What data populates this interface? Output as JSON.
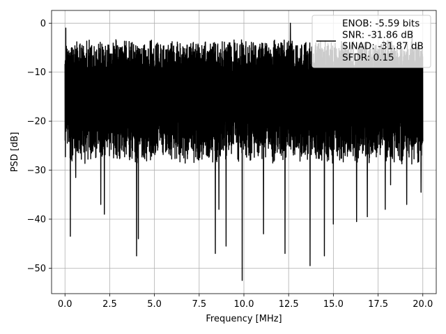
{
  "chart_data": {
    "type": "line",
    "title": "",
    "xlabel": "Frequency [MHz]",
    "ylabel": "PSD [dB]",
    "xlim": [
      -0.75,
      20.75
    ],
    "ylim": [
      -55.2,
      2.6
    ],
    "xticks": [
      0.0,
      2.5,
      5.0,
      7.5,
      10.0,
      12.5,
      15.0,
      17.5,
      20.0
    ],
    "xtick_labels": [
      "0.0",
      "2.5",
      "5.0",
      "7.5",
      "10.0",
      "12.5",
      "15.0",
      "17.5",
      "20.0"
    ],
    "yticks": [
      0,
      -10,
      -20,
      -30,
      -40,
      -50
    ],
    "ytick_labels": [
      "0",
      "−10",
      "−20",
      "−30",
      "−40",
      "−50"
    ],
    "grid": true,
    "legend_position": "top-right",
    "series": [
      {
        "name": "ENOB: -5.59 bits\nSNR: -31.86 dB\nSINAD: -31.87 dB\nSFDR: 0.15",
        "legend_lines": [
          "ENOB: -5.59 bits",
          "SNR: -31.86 dB",
          "SINAD: -31.87 dB",
          "SFDR: 0.15"
        ],
        "color": "#000000",
        "description": "noise-like power spectral density spanning the band",
        "x_range": [
          0.0,
          20.0
        ],
        "typical_upper": -5,
        "typical_lower": -26,
        "peaks": [
          {
            "x": 0.05,
            "y": -1.0
          },
          {
            "x": 0.3,
            "y": -2.5
          },
          {
            "x": 12.6,
            "y": 0.0
          },
          {
            "x": 19.4,
            "y": -1.5
          }
        ],
        "dips": [
          {
            "x": 0.3,
            "y": -43.5
          },
          {
            "x": 0.6,
            "y": -31.5
          },
          {
            "x": 2.0,
            "y": -37.0
          },
          {
            "x": 2.2,
            "y": -39.0
          },
          {
            "x": 4.0,
            "y": -47.5
          },
          {
            "x": 4.1,
            "y": -44.0
          },
          {
            "x": 8.4,
            "y": -47.0
          },
          {
            "x": 8.6,
            "y": -38.0
          },
          {
            "x": 9.0,
            "y": -45.5
          },
          {
            "x": 9.9,
            "y": -52.5
          },
          {
            "x": 11.1,
            "y": -43.0
          },
          {
            "x": 12.3,
            "y": -47.0
          },
          {
            "x": 13.7,
            "y": -49.5
          },
          {
            "x": 14.5,
            "y": -47.5
          },
          {
            "x": 15.0,
            "y": -41.0
          },
          {
            "x": 16.3,
            "y": -40.5
          },
          {
            "x": 16.9,
            "y": -39.5
          },
          {
            "x": 17.9,
            "y": -38.0
          },
          {
            "x": 18.2,
            "y": -33.0
          },
          {
            "x": 19.1,
            "y": -37.0
          },
          {
            "x": 19.9,
            "y": -34.5
          }
        ]
      }
    ]
  }
}
